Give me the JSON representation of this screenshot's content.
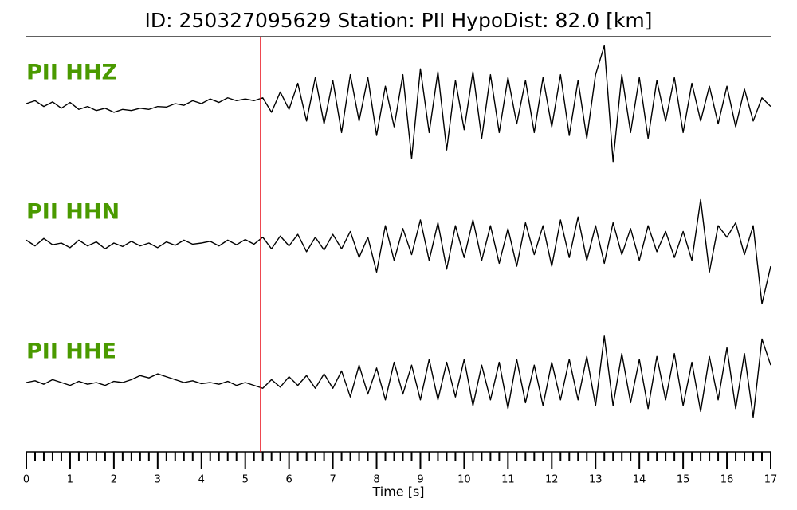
{
  "chart_data": {
    "type": "line",
    "title": "ID: 250327095629   Station: PII   HypoDist:     82.0 [km]",
    "xlabel": "Time [s]",
    "xlim": [
      0,
      17
    ],
    "xticks": [
      0,
      1,
      2,
      3,
      4,
      5,
      6,
      7,
      8,
      9,
      10,
      11,
      12,
      13,
      14,
      15,
      16,
      17
    ],
    "xminor_subdivisions": 5,
    "ylim": [
      -1.1,
      1.1
    ],
    "label_color": "#4a9a00",
    "vline": {
      "x": 5.35,
      "color": "#e8000b"
    },
    "x": [
      0,
      0.2,
      0.4,
      0.6,
      0.8,
      1,
      1.2,
      1.4,
      1.6,
      1.8,
      2,
      2.2,
      2.4,
      2.6,
      2.8,
      3,
      3.2,
      3.4,
      3.6,
      3.8,
      4,
      4.2,
      4.4,
      4.6,
      4.8,
      5,
      5.2,
      5.4,
      5.6,
      5.8,
      6,
      6.2,
      6.4,
      6.6,
      6.8,
      7,
      7.2,
      7.4,
      7.6,
      7.8,
      8,
      8.2,
      8.4,
      8.6,
      8.8,
      9,
      9.2,
      9.4,
      9.6,
      9.8,
      10,
      10.2,
      10.4,
      10.6,
      10.8,
      11,
      11.2,
      11.4,
      11.6,
      11.8,
      12,
      12.2,
      12.4,
      12.6,
      12.8,
      13,
      13.2,
      13.4,
      13.6,
      13.8,
      14,
      14.2,
      14.4,
      14.6,
      14.8,
      15,
      15.2,
      15.4,
      15.6,
      15.8,
      16,
      16.2,
      16.4,
      16.6,
      16.8,
      17
    ],
    "series": [
      {
        "name": "PII HHZ",
        "color": "#000000",
        "values": [
          0.0,
          0.05,
          -0.05,
          0.03,
          -0.08,
          0.02,
          -0.1,
          -0.05,
          -0.12,
          -0.08,
          -0.15,
          -0.1,
          -0.12,
          -0.08,
          -0.1,
          -0.05,
          -0.06,
          0.0,
          -0.03,
          0.05,
          0.0,
          0.08,
          0.02,
          0.1,
          0.05,
          0.08,
          0.05,
          0.1,
          -0.15,
          0.2,
          -0.1,
          0.35,
          -0.3,
          0.45,
          -0.35,
          0.4,
          -0.5,
          0.5,
          -0.3,
          0.45,
          -0.55,
          0.3,
          -0.4,
          0.5,
          -0.95,
          0.6,
          -0.5,
          0.55,
          -0.8,
          0.4,
          -0.45,
          0.55,
          -0.6,
          0.5,
          -0.5,
          0.45,
          -0.35,
          0.4,
          -0.5,
          0.45,
          -0.4,
          0.5,
          -0.55,
          0.4,
          -0.6,
          0.5,
          1.0,
          -1.0,
          0.5,
          -0.5,
          0.45,
          -0.6,
          0.4,
          -0.3,
          0.45,
          -0.5,
          0.35,
          -0.3,
          0.3,
          -0.35,
          0.3,
          -0.4,
          0.25,
          -0.3,
          0.1,
          -0.05
        ]
      },
      {
        "name": "PII HHN",
        "color": "#000000",
        "values": [
          0.05,
          -0.05,
          0.08,
          -0.03,
          0.0,
          -0.08,
          0.05,
          -0.05,
          0.02,
          -0.1,
          0.0,
          -0.06,
          0.03,
          -0.05,
          0.0,
          -0.08,
          0.02,
          -0.04,
          0.05,
          -0.02,
          0.0,
          0.03,
          -0.05,
          0.05,
          -0.03,
          0.06,
          -0.02,
          0.1,
          -0.1,
          0.12,
          -0.05,
          0.15,
          -0.15,
          0.1,
          -0.12,
          0.15,
          -0.1,
          0.2,
          -0.25,
          0.1,
          -0.5,
          0.3,
          -0.3,
          0.25,
          -0.2,
          0.4,
          -0.3,
          0.35,
          -0.45,
          0.3,
          -0.25,
          0.4,
          -0.3,
          0.3,
          -0.35,
          0.25,
          -0.4,
          0.35,
          -0.2,
          0.3,
          -0.4,
          0.4,
          -0.25,
          0.45,
          -0.3,
          0.3,
          -0.35,
          0.35,
          -0.2,
          0.25,
          -0.3,
          0.3,
          -0.15,
          0.2,
          -0.25,
          0.2,
          -0.3,
          0.75,
          -0.5,
          0.3,
          0.1,
          0.35,
          -0.2,
          0.3,
          -1.05,
          -0.4
        ]
      },
      {
        "name": "PII HHE",
        "color": "#000000",
        "values": [
          0.0,
          0.03,
          -0.03,
          0.05,
          0.0,
          -0.05,
          0.02,
          -0.03,
          0.0,
          -0.05,
          0.02,
          0.0,
          0.05,
          0.12,
          0.08,
          0.15,
          0.1,
          0.05,
          0.0,
          0.03,
          -0.02,
          0.0,
          -0.03,
          0.02,
          -0.05,
          0.0,
          -0.05,
          -0.1,
          0.05,
          -0.08,
          0.1,
          -0.05,
          0.12,
          -0.1,
          0.15,
          -0.1,
          0.2,
          -0.25,
          0.3,
          -0.2,
          0.25,
          -0.3,
          0.35,
          -0.2,
          0.3,
          -0.3,
          0.4,
          -0.3,
          0.35,
          -0.25,
          0.4,
          -0.4,
          0.3,
          -0.3,
          0.35,
          -0.45,
          0.4,
          -0.35,
          0.3,
          -0.4,
          0.35,
          -0.3,
          0.4,
          -0.3,
          0.45,
          -0.4,
          0.8,
          -0.4,
          0.5,
          -0.35,
          0.4,
          -0.45,
          0.45,
          -0.3,
          0.5,
          -0.4,
          0.35,
          -0.5,
          0.45,
          -0.3,
          0.6,
          -0.45,
          0.5,
          -0.6,
          0.75,
          0.3
        ]
      }
    ]
  }
}
